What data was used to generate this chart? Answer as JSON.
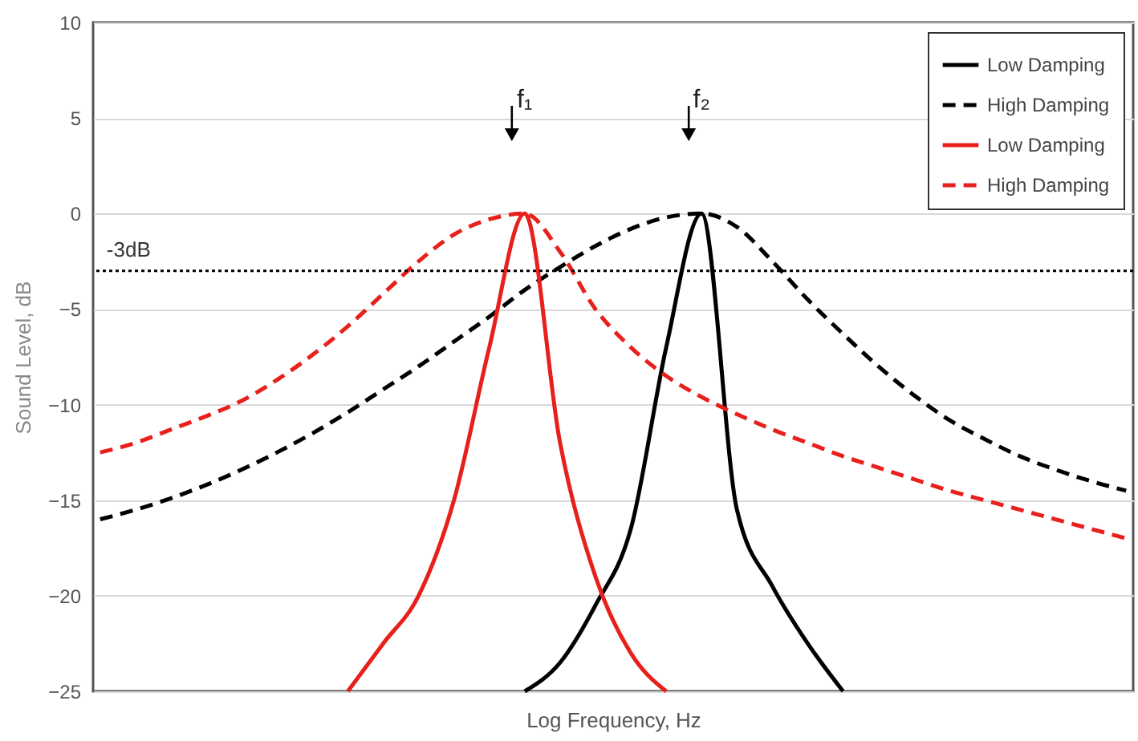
{
  "chart_data": {
    "type": "line",
    "xlabel": "Log Frequency, Hz",
    "ylabel": "Sound Level, dB",
    "categories": [
      null,
      null,
      null,
      null,
      null,
      null,
      null,
      null,
      null,
      null,
      null,
      null,
      null,
      null,
      null,
      null,
      null,
      null,
      null,
      null,
      null,
      null,
      null,
      null,
      null,
      null,
      null,
      null,
      null,
      null
    ],
    "series": [
      {
        "name": "Low Damping",
        "color": "#000000",
        "line_style": "solid",
        "values": [
          null,
          null,
          null,
          null,
          null,
          null,
          null,
          null,
          null,
          null,
          null,
          null,
          -25,
          -23.5,
          -20.5,
          -16.5,
          -7,
          0,
          -15.5,
          -19.5,
          -22.5,
          -25,
          null,
          null,
          null,
          null,
          null,
          null,
          null,
          null
        ]
      },
      {
        "name": "High Damping",
        "color": "#000000",
        "line_style": "dashed",
        "values": [
          -16,
          -15.5,
          -14.9,
          -14.2,
          -13.4,
          -12.5,
          -11.5,
          -10.4,
          -9.2,
          -8,
          -6.7,
          -5.4,
          -4,
          -2.8,
          -1.7,
          -0.8,
          -0.2,
          0,
          -0.7,
          -2.5,
          -4.5,
          -6.3,
          -8,
          -9.5,
          -10.8,
          -11.8,
          -12.7,
          -13.4,
          -14,
          -14.5
        ]
      },
      {
        "name": "Low Damping",
        "color": "#e8201c",
        "line_style": "solid",
        "values": [
          null,
          null,
          null,
          null,
          null,
          null,
          null,
          -25,
          -22.5,
          -20,
          -15,
          -7,
          0,
          -12,
          -19,
          -23,
          -25,
          null,
          null,
          null,
          null,
          null,
          null,
          null,
          null,
          null,
          null,
          null,
          null,
          null
        ]
      },
      {
        "name": "High Damping",
        "color": "#e8201c",
        "line_style": "dashed",
        "values": [
          -12.5,
          -12,
          -11.3,
          -10.6,
          -9.8,
          -8.7,
          -7.4,
          -5.9,
          -4.2,
          -2.5,
          -1.1,
          -0.3,
          0,
          -2,
          -5,
          -7,
          -8.5,
          -9.6,
          -10.5,
          -11.3,
          -12,
          -12.7,
          -13.3,
          -13.9,
          -14.5,
          -15,
          -15.5,
          -16,
          -16.5,
          -17
        ]
      }
    ],
    "ylim": [
      -25,
      10
    ],
    "yticks": [
      -25,
      -20,
      -15,
      -10,
      -5,
      0,
      5,
      10
    ],
    "grid": "y",
    "legend": "top right",
    "ref_lines": [
      {
        "axis": "y",
        "value": -3,
        "label": "-3dB",
        "color": "#000000",
        "line_style": "dotted"
      }
    ],
    "annotations": [
      "f₁",
      "f₂"
    ]
  }
}
